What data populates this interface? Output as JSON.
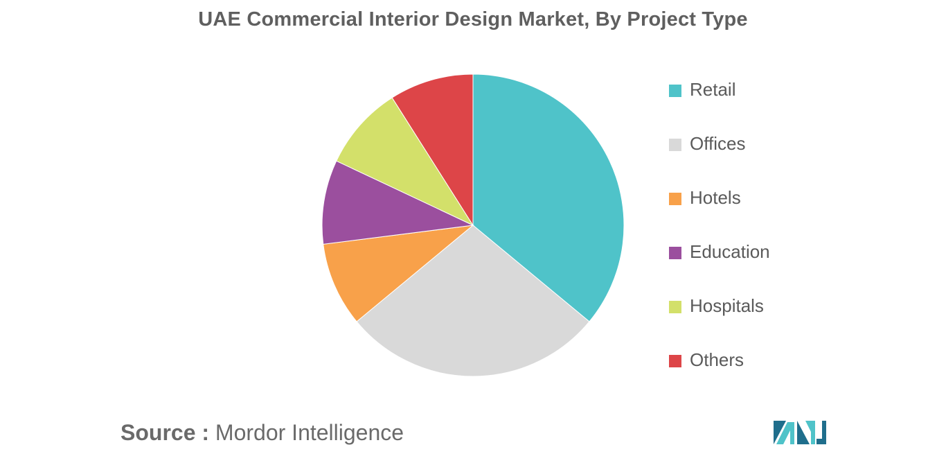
{
  "chart_data": {
    "type": "pie",
    "title": "UAE Commercial Interior Design Market, By Project Type",
    "slices": [
      {
        "label": "Retail",
        "value": 36,
        "color": "#4fc3c9"
      },
      {
        "label": "Offices",
        "value": 28,
        "color": "#d9d9d9"
      },
      {
        "label": "Hotels",
        "value": 9,
        "color": "#f8a14a"
      },
      {
        "label": "Education",
        "value": 9,
        "color": "#9b4f9e"
      },
      {
        "label": "Hospitals",
        "value": 9,
        "color": "#d3e06a"
      },
      {
        "label": "Others",
        "value": 9,
        "color": "#dd4548"
      }
    ],
    "legend_position": "right"
  },
  "footer": {
    "source_key": "Source :",
    "source_value": "Mordor Intelligence"
  },
  "logo": {
    "icon": "mordor-intelligence-logo",
    "colors": [
      "#1f6e8c",
      "#4fc3c9"
    ]
  }
}
